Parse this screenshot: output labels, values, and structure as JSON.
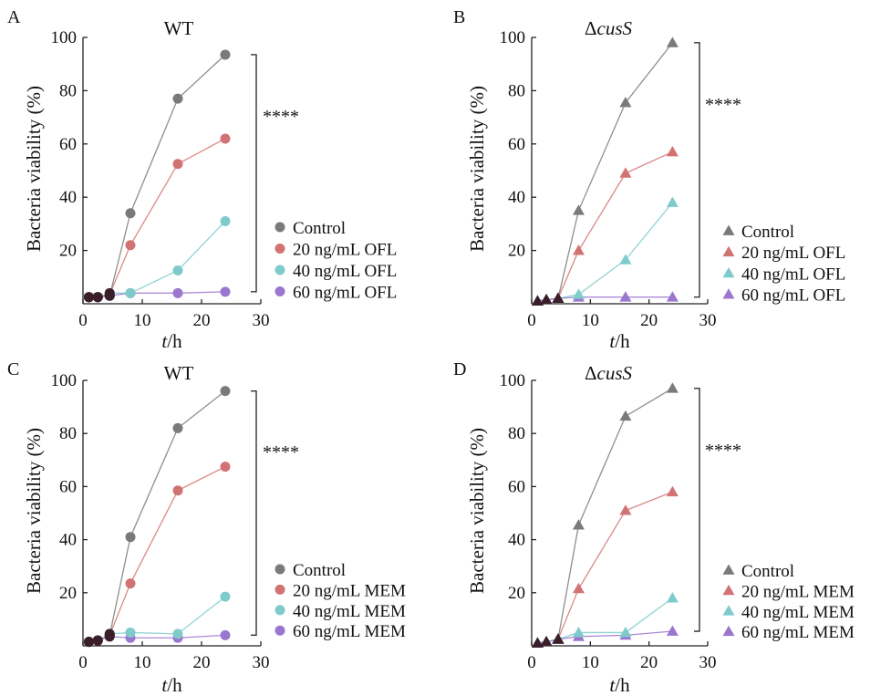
{
  "chart_data": [
    {
      "type": "line",
      "panel_label": "A",
      "title": "WT",
      "title_style": "normal",
      "marker": "circle",
      "xlabel": "t/h",
      "ylabel": "Bacteria viability (%)",
      "xlim": [
        0,
        30
      ],
      "ylim": [
        0,
        100
      ],
      "xticks": [
        0,
        10,
        20,
        30
      ],
      "yticks": [
        20,
        40,
        60,
        80,
        100
      ],
      "significance": "****",
      "legend_position": "right",
      "series": [
        {
          "name": "Control",
          "color": "#7a7a7a",
          "x": [
            1,
            2.5,
            4.5,
            8,
            16,
            24
          ],
          "y": [
            2.5,
            2.5,
            3,
            34,
            77,
            93.5
          ]
        },
        {
          "name": "20 ng/mL OFL",
          "color": "#d27373",
          "x": [
            1,
            2.5,
            4.5,
            8,
            16,
            24
          ],
          "y": [
            2.5,
            2.5,
            3.5,
            22,
            52.5,
            62
          ]
        },
        {
          "name": "40 ng/mL OFL",
          "color": "#7fcbcb",
          "x": [
            1,
            2.5,
            4.5,
            8,
            16,
            24
          ],
          "y": [
            2.5,
            2.5,
            4,
            4,
            12.5,
            31
          ]
        },
        {
          "name": "60 ng/mL OFL",
          "color": "#9b76cf",
          "x": [
            1,
            2.5,
            4.5,
            8,
            16,
            24
          ],
          "y": [
            2.5,
            2.5,
            3,
            4,
            4,
            4.5
          ]
        }
      ]
    },
    {
      "type": "line",
      "panel_label": "B",
      "title": "ΔcusS",
      "title_style": "delta-italic",
      "marker": "triangle",
      "xlabel": "t/h",
      "ylabel": "Bacteria viability (%)",
      "xlim": [
        0,
        30
      ],
      "ylim": [
        0,
        100
      ],
      "xticks": [
        0,
        10,
        20,
        30
      ],
      "yticks": [
        20,
        40,
        60,
        80,
        100
      ],
      "significance": "****",
      "legend_position": "right",
      "series": [
        {
          "name": "Control",
          "color": "#7a7a7a",
          "x": [
            1,
            2.5,
            4.5,
            8,
            16,
            24
          ],
          "y": [
            1,
            1.5,
            2,
            35,
            75.5,
            98
          ]
        },
        {
          "name": "20 ng/mL OFL",
          "color": "#d27373",
          "x": [
            1,
            2.5,
            4.5,
            8,
            16,
            24
          ],
          "y": [
            1,
            1.5,
            2,
            20,
            49,
            57
          ]
        },
        {
          "name": "40 ng/mL OFL",
          "color": "#7fcbcb",
          "x": [
            1,
            2.5,
            4.5,
            8,
            16,
            24
          ],
          "y": [
            1,
            1.5,
            2,
            3.5,
            16.5,
            38
          ]
        },
        {
          "name": "60 ng/mL OFL",
          "color": "#9b76cf",
          "x": [
            1,
            2.5,
            4.5,
            8,
            16,
            24
          ],
          "y": [
            1,
            1.5,
            2,
            2.5,
            2.5,
            2.5
          ]
        }
      ]
    },
    {
      "type": "line",
      "panel_label": "C",
      "title": "WT",
      "title_style": "normal",
      "marker": "circle",
      "xlabel": "t/h",
      "ylabel": "Bacteria viability (%)",
      "xlim": [
        0,
        30
      ],
      "ylim": [
        0,
        100
      ],
      "xticks": [
        0,
        10,
        20,
        30
      ],
      "yticks": [
        20,
        40,
        60,
        80,
        100
      ],
      "significance": "****",
      "legend_position": "right",
      "series": [
        {
          "name": "Control",
          "color": "#7a7a7a",
          "x": [
            1,
            2.5,
            4.5,
            8,
            16,
            24
          ],
          "y": [
            1.5,
            2,
            4,
            41,
            82,
            96
          ]
        },
        {
          "name": "20 ng/mL MEM",
          "color": "#d27373",
          "x": [
            1,
            2.5,
            4.5,
            8,
            16,
            24
          ],
          "y": [
            1.5,
            2,
            4,
            23.5,
            58.5,
            67.5
          ]
        },
        {
          "name": "40 ng/mL MEM",
          "color": "#7fcbcb",
          "x": [
            1,
            2.5,
            4.5,
            8,
            16,
            24
          ],
          "y": [
            1.5,
            2,
            4.5,
            5,
            4.5,
            18.5
          ]
        },
        {
          "name": "60 ng/mL MEM",
          "color": "#9b76cf",
          "x": [
            1,
            2.5,
            4.5,
            8,
            16,
            24
          ],
          "y": [
            1.5,
            2,
            3.5,
            3,
            3,
            4
          ]
        }
      ]
    },
    {
      "type": "line",
      "panel_label": "D",
      "title": "ΔcusS",
      "title_style": "delta-italic",
      "marker": "triangle",
      "xlabel": "t/h",
      "ylabel": "Bacteria viability (%)",
      "xlim": [
        0,
        30
      ],
      "ylim": [
        0,
        100
      ],
      "xticks": [
        0,
        10,
        20,
        30
      ],
      "yticks": [
        20,
        40,
        60,
        80,
        100
      ],
      "significance": "****",
      "legend_position": "right",
      "series": [
        {
          "name": "Control",
          "color": "#7a7a7a",
          "x": [
            1,
            2.5,
            4.5,
            8,
            16,
            24
          ],
          "y": [
            1,
            1.5,
            2.5,
            45.5,
            86.5,
            97
          ]
        },
        {
          "name": "20 ng/mL MEM",
          "color": "#d27373",
          "x": [
            1,
            2.5,
            4.5,
            8,
            16,
            24
          ],
          "y": [
            1,
            1.5,
            2.5,
            21.5,
            51,
            58
          ]
        },
        {
          "name": "40 ng/mL MEM",
          "color": "#7fcbcb",
          "x": [
            1,
            2.5,
            4.5,
            8,
            16,
            24
          ],
          "y": [
            1,
            1.5,
            2.5,
            5,
            5,
            18
          ]
        },
        {
          "name": "60 ng/mL MEM",
          "color": "#9b76cf",
          "x": [
            1,
            2.5,
            4.5,
            8,
            16,
            24
          ],
          "y": [
            1,
            1.5,
            2.5,
            3.5,
            4,
            5.5
          ]
        }
      ]
    }
  ]
}
